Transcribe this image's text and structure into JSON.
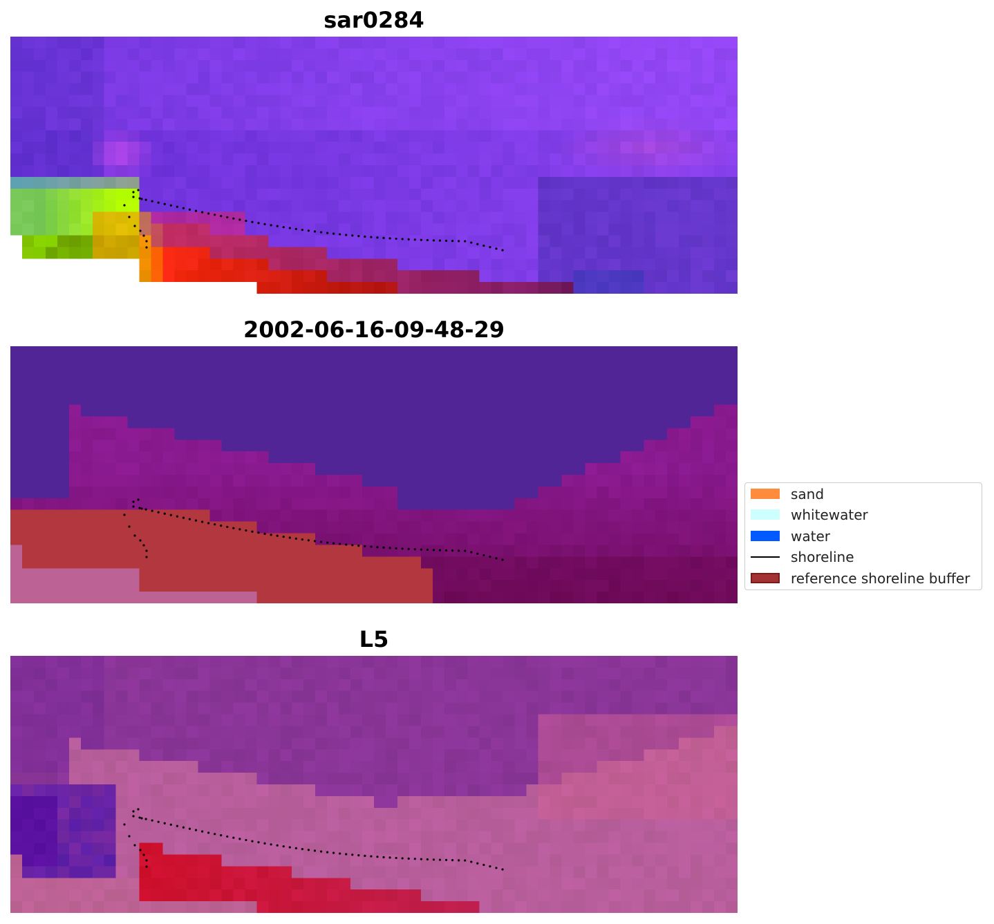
{
  "panels": [
    {
      "title": "sar0284",
      "style": "sar"
    },
    {
      "title": "2002-06-16-09-48-29",
      "style": "class"
    },
    {
      "title": "L5",
      "style": "l5"
    }
  ],
  "legend": [
    {
      "label": "sand",
      "color": "#ff8c3c",
      "kind": "patch"
    },
    {
      "label": "whitewater",
      "color": "#ccfffd",
      "kind": "patch"
    },
    {
      "label": "water",
      "color": "#005aff",
      "kind": "patch"
    },
    {
      "label": "shoreline",
      "color": "#000000",
      "kind": "line"
    },
    {
      "label": "reference shoreline buffer",
      "color": "#a33333",
      "edge": "#7a1a1a",
      "kind": "patch"
    }
  ]
}
